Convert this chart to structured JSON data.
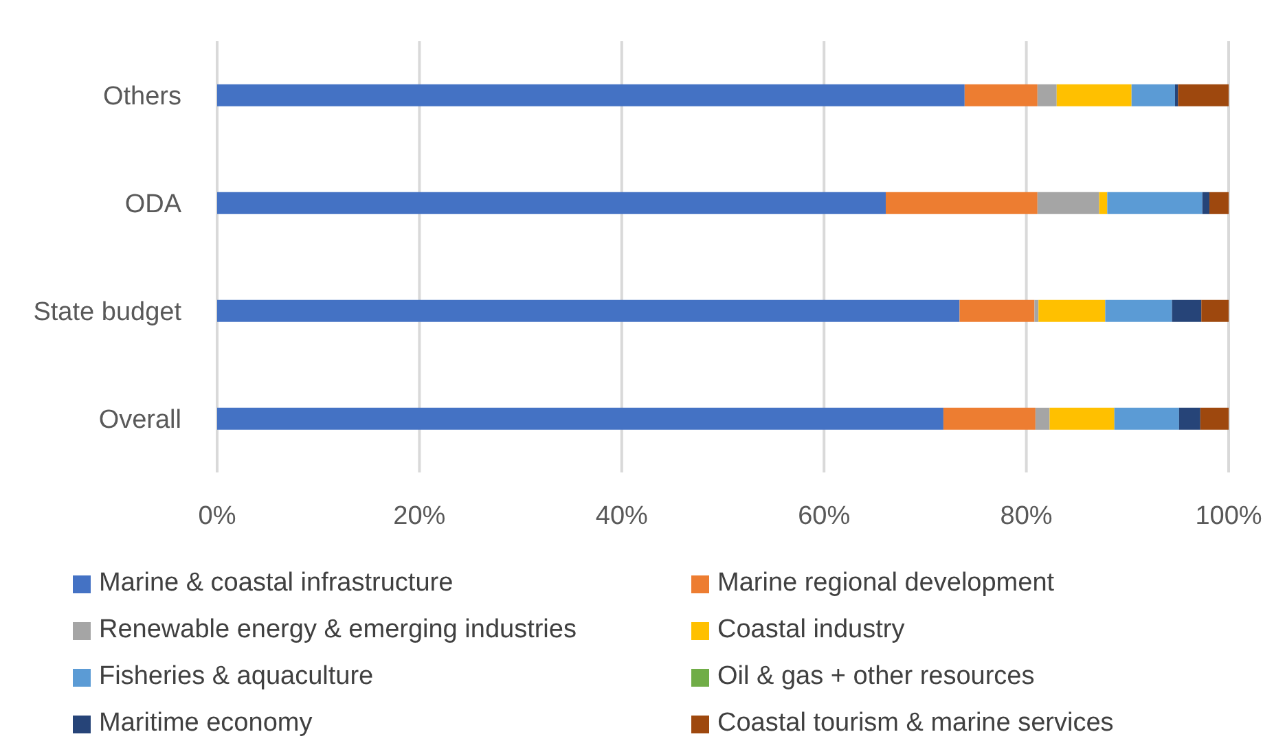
{
  "chart_data": {
    "type": "bar",
    "orientation": "horizontal",
    "stacked": true,
    "categories": [
      "Others",
      "ODA",
      "State budget",
      "Overall"
    ],
    "series": [
      {
        "name": "Marine & coastal infrastructure",
        "color": "#4472c4",
        "values": [
          73.9,
          66.1,
          73.4,
          71.8
        ]
      },
      {
        "name": "Marine regional development",
        "color": "#ed7d31",
        "values": [
          7.2,
          15.0,
          7.4,
          9.1
        ]
      },
      {
        "name": "Renewable energy & emerging industries",
        "color": "#a5a5a5",
        "values": [
          1.9,
          6.1,
          0.4,
          1.4
        ]
      },
      {
        "name": "Coastal industry",
        "color": "#ffc000",
        "values": [
          7.4,
          0.8,
          6.6,
          6.4
        ]
      },
      {
        "name": "Fisheries & aquaculture",
        "color": "#5b9bd5",
        "values": [
          4.3,
          9.4,
          6.6,
          6.4
        ]
      },
      {
        "name": "Oil & gas + other resources",
        "color": "#70ad47",
        "values": [
          0,
          0,
          0,
          0
        ]
      },
      {
        "name": "Maritime economy",
        "color": "#264478",
        "values": [
          0.3,
          0.7,
          2.9,
          2.1
        ]
      },
      {
        "name": "Coastal tourism & marine services",
        "color": "#9e480e",
        "values": [
          5.0,
          1.9,
          2.7,
          2.8
        ]
      }
    ],
    "xlim": [
      0,
      100
    ],
    "xticks": [
      {
        "value": 0,
        "label": "0%"
      },
      {
        "value": 20,
        "label": "20%"
      },
      {
        "value": 40,
        "label": "40%"
      },
      {
        "value": 60,
        "label": "60%"
      },
      {
        "value": 80,
        "label": "80%"
      },
      {
        "value": 100,
        "label": "100%"
      }
    ],
    "grid": "x",
    "legend": "bottom"
  }
}
